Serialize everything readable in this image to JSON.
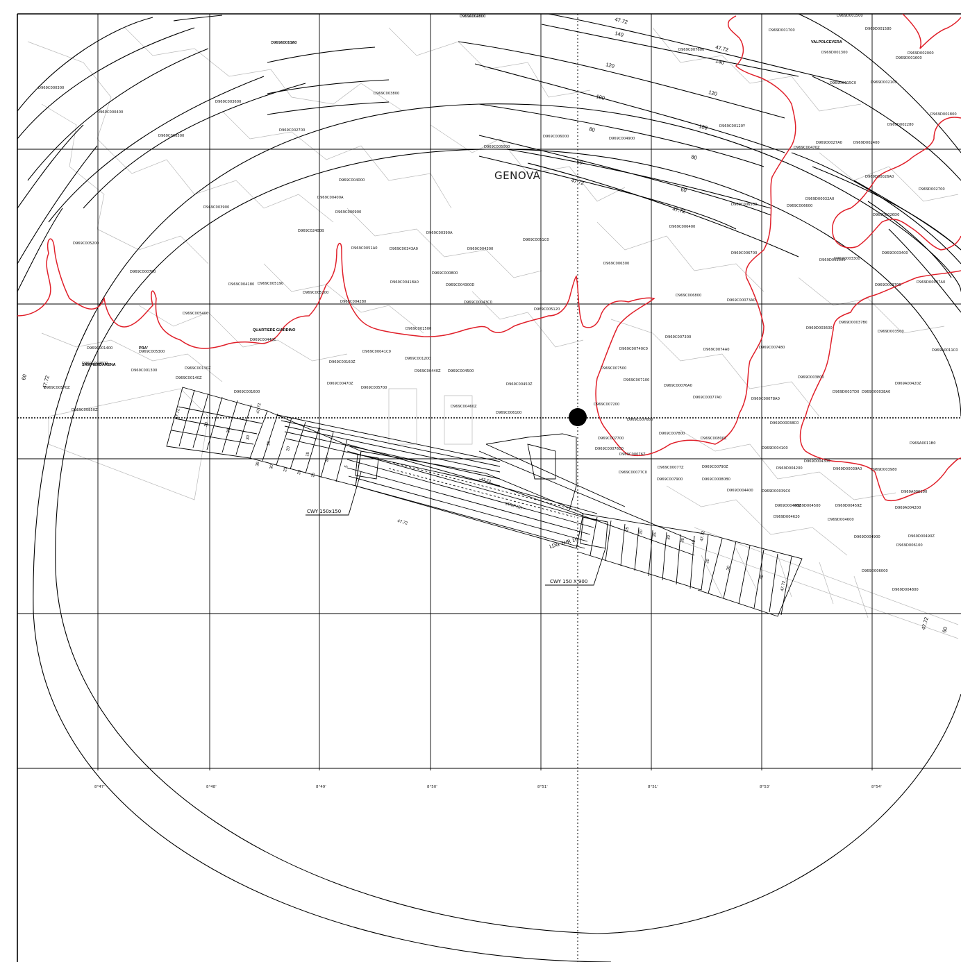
{
  "map": {
    "city_label": "GENOVA",
    "district_labels": [
      "QUARTIERE GIARDINO",
      "PRA'",
      "SAMPIERDARENA",
      "VALPOLCEVERA"
    ],
    "callouts": [
      "CWY 150x150",
      "CWY 150 X 900",
      "LDG THR 16",
      "STRIP (2)"
    ],
    "surface_heights": [
      "47.72",
      "140",
      "120",
      "100",
      "80",
      "60",
      "40",
      "35",
      "30",
      "25",
      "20",
      "15",
      "10",
      "5"
    ],
    "longitude_labels": [
      "8°47'",
      "8°48'",
      "8°49'",
      "8°50'",
      "8°51'",
      "8°51'",
      "8°53'",
      "8°54'"
    ],
    "parcel_codes": [
      "D969C004800",
      "D969C003300",
      "D969C000300",
      "D969C003600",
      "D969C003800",
      "D969C000400",
      "D969C002700",
      "D969C000500",
      "D969C005000",
      "D969C006000",
      "D969C004900",
      "D969C004000",
      "D969C00400A",
      "D969C003900",
      "D969C000900",
      "D969C02400B",
      "D969C00390A",
      "D969C0051A0",
      "D969C00343A0",
      "D969C004300",
      "D969C0051C0",
      "D969C005200",
      "D969C000700",
      "D969C000800",
      "D969C005190",
      "D969C004180",
      "D969C00418A0",
      "D969C004300D",
      "D969C005100",
      "D969C004280",
      "D969C00043C0",
      "D969C005120",
      "D969C005400",
      "D969C001500",
      "D969C00440E",
      "D969C005300",
      "D969C00041C0",
      "D969C001400",
      "D969C004600",
      "D969C001300",
      "D969C00130Z",
      "D969C00140Z",
      "D969C001600",
      "D969C00160Z",
      "D969C00440Z",
      "D969C004500",
      "D969C00470Z",
      "D969C005700",
      "D969C00450Z",
      "D969C00460Z",
      "D969C006100",
      "D969C00570Z",
      "D969C00850Z",
      "D969C001200",
      "D969C00120Y",
      "D969C00470Z",
      "D969C006300",
      "D969C006400",
      "D969C006500",
      "D969C006600",
      "D969C006700",
      "D969C006800",
      "D969C00073A0",
      "D969C007300",
      "D969C0074A0",
      "D969C00740C0",
      "D969C007480",
      "D969C007500",
      "D969C007100",
      "D969C00076A0",
      "D969C00077A0",
      "D969C00078A0",
      "D969C007800",
      "D969C007200",
      "D969C007680",
      "D969C00076C0",
      "D969C00076Z",
      "D969C00077C0",
      "D969C00077Z",
      "D969C007900",
      "D969C00790Z",
      "D969C00080B0",
      "D969C00800Z",
      "D969C007700",
      "D969C007600",
      "D969D001300",
      "D969D001500",
      "D969D001580",
      "D969D001700",
      "D969D0015C0",
      "D969D001600",
      "D969D002000",
      "D969D002100",
      "D969D001800",
      "D969D002280",
      "D969D0027A0",
      "D969D002400",
      "D969D00026A0",
      "D969D002700",
      "D969D0026D0",
      "D969D00032A0",
      "D969D002500",
      "D969D003300",
      "D969D003400",
      "D969D00037A0",
      "D969D003700",
      "D969D00037B0",
      "D969D003600",
      "D969D003500",
      "D969D0037D0",
      "D969D003800",
      "D969D00038A0",
      "D969D00038C0",
      "D969D004100",
      "D969D004200",
      "D969D004300",
      "D969D00039A0",
      "D969D003980",
      "D969D00039C0",
      "D969D004400",
      "D969D00440Z",
      "D969D004500",
      "D969D004600",
      "D969D004620",
      "D969D00459Z",
      "D969D004900",
      "D969D00490Z",
      "D969D006100",
      "D969D006000",
      "D969D004800",
      "D969A006200",
      "D969A004200",
      "D969A00420Z",
      "D969A0011B0",
      "D969A0011C0",
      "D969A002800",
      "D969A0011A0"
    ]
  }
}
